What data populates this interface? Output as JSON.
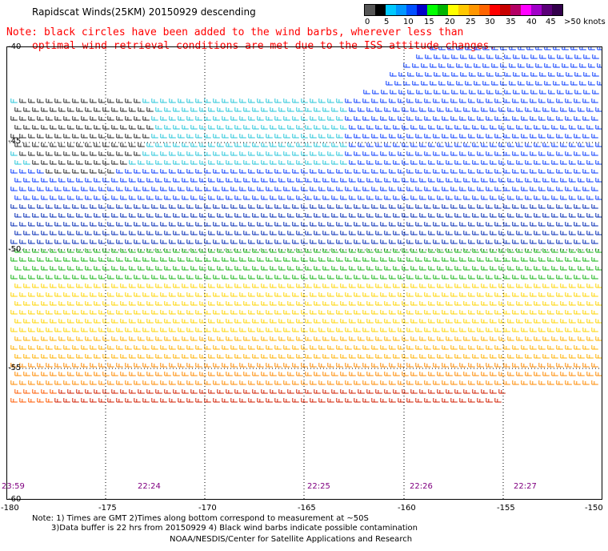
{
  "header": {
    "title": "Rapidscat Winds(25KM) 20150929 descending",
    "note_line1": "Note: black circles have been added to the wind barbs, wherever less than",
    "note_line2": "optimal wind retrieval conditions are met due to the ISS attitude changes."
  },
  "legend": {
    "colors": [
      "#555555",
      "#000000",
      "#00c8ff",
      "#0096ff",
      "#0050ff",
      "#0000c8",
      "#00ff00",
      "#00b400",
      "#ffff00",
      "#ffc800",
      "#ff9600",
      "#ff6400",
      "#ff0000",
      "#c80000",
      "#b40064",
      "#ff00ff",
      "#a000c8",
      "#5a0078",
      "#32004b"
    ],
    "labels": [
      "0",
      "5",
      "10",
      "15",
      "20",
      "25",
      "30",
      "35",
      "40",
      "45",
      ">50 knots"
    ]
  },
  "map": {
    "lat_labels": [
      "-40",
      "-45",
      "-50",
      "-55",
      "-60"
    ],
    "lon_labels": [
      "-180",
      "-175",
      "-170",
      "-165",
      "-160",
      "-155",
      "-150"
    ],
    "time_labels": [
      "23:59",
      "22:24",
      "22:25",
      "22:26",
      "22:27"
    ]
  },
  "footer": {
    "note_line1": "Note: 1) Times are GMT 2)Times along bottom correspond to measurement at ~50S",
    "note_line2": "3)Data buffer is 22 hrs from 20150929 4) Black wind barbs indicate possible contamination",
    "credit": "NOAA/NESDIS/Center for Satellite Applications and Research"
  }
}
